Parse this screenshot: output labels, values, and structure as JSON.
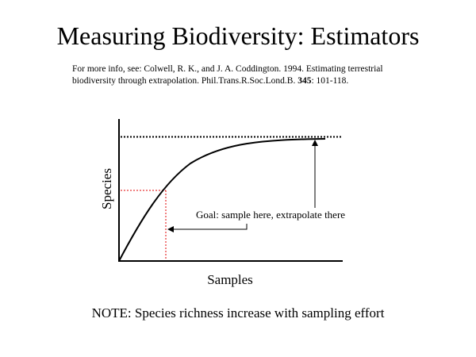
{
  "slide": {
    "title": "Measuring Biodiversity: Estimators",
    "reference": {
      "text_before_volume": "For more info, see: Colwell, R. K., and J. A. Coddington. 1994. Estimating terrestrial biodiversity through extrapolation. Phil.Trans.R.Soc.Lond.B.  ",
      "volume": "345",
      "pages": ": 101-118."
    },
    "note": "NOTE: Species richness increase with sampling effort"
  },
  "diagram": {
    "x_axis_label": "Samples",
    "y_axis_label": "Species",
    "callout": "Goal: sample here, extrapolate there",
    "asymptote_style": "dotted black line",
    "sample_marker_style": "dotted red lines",
    "colors": {
      "curve": "#000000",
      "asymptote": "#000000",
      "sample_marker": "#e00000"
    }
  }
}
